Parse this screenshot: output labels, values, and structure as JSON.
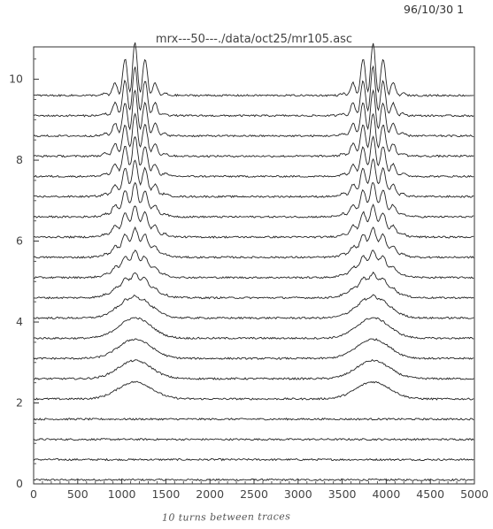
{
  "header": {
    "timestamp": "96/10/30  1"
  },
  "annotation": {
    "handwritten_note": "10 turns between traces"
  },
  "chart_data": {
    "type": "line",
    "title": "mrx---50---./data/oct25/mr105.asc",
    "xlabel": "",
    "ylabel": "",
    "xlim": [
      0,
      5000
    ],
    "ylim": [
      0,
      10.8
    ],
    "grid": false,
    "x_ticks": [
      0,
      500,
      1000,
      1500,
      2000,
      2500,
      3000,
      3500,
      4000,
      4500,
      5000
    ],
    "y_ticks": [
      0,
      2,
      4,
      6,
      8,
      10
    ],
    "trace_count": 20,
    "trace_offset_start": 0.1,
    "trace_offset_step": 0.5,
    "peak_centers": [
      1150,
      3850
    ],
    "description_of_traces": "Stacked waterfall traces; bottom traces are flat noise, broad bunches appear from trace 4 upward and develop fine ripples near the top",
    "color": "#222222"
  }
}
